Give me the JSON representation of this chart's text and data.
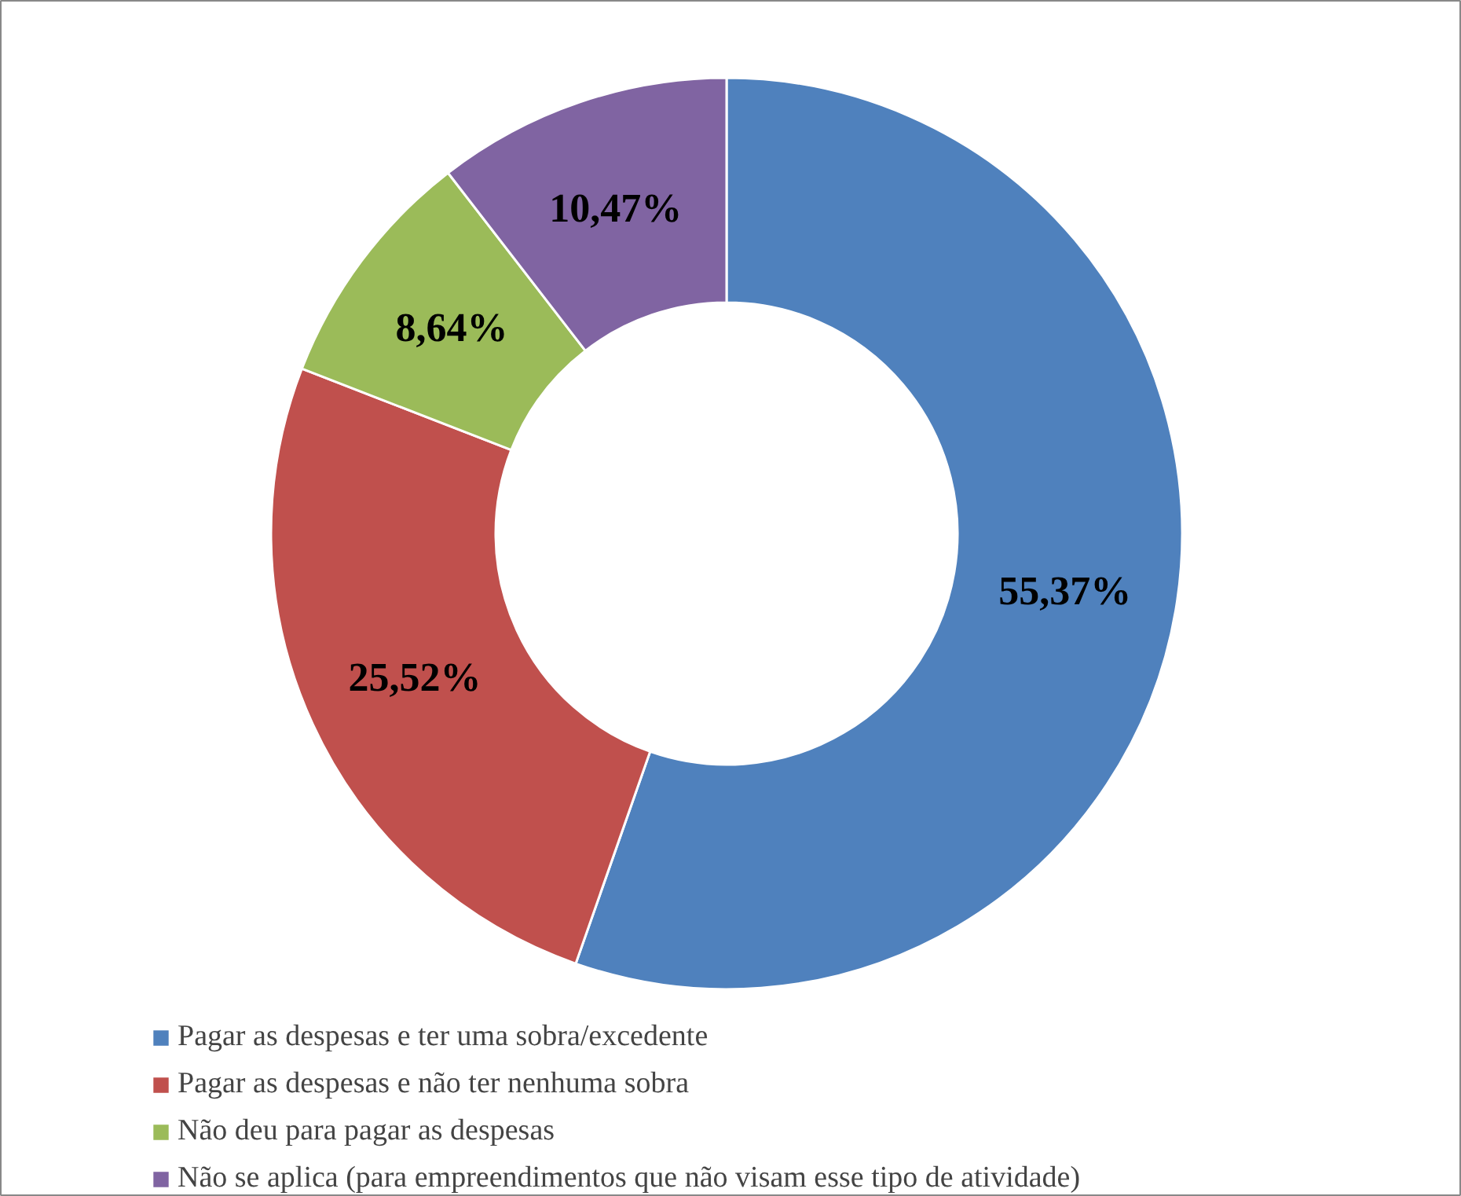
{
  "chart_data": {
    "type": "donut",
    "categories": [
      "Pagar as despesas e ter uma sobra/excedente",
      "Pagar as despesas e não ter nenhuma sobra",
      "Não deu para pagar as despesas",
      "Não se aplica (para empreendimentos que não visam esse tipo de atividade)"
    ],
    "values": [
      55.37,
      25.52,
      8.64,
      10.47
    ],
    "colors": [
      "#4f81bd",
      "#c0504d",
      "#9bbb59",
      "#8064a2"
    ],
    "value_labels": [
      "55,37%",
      "25,52%",
      "8,64%",
      "10,47%"
    ],
    "legend": "bottom"
  }
}
